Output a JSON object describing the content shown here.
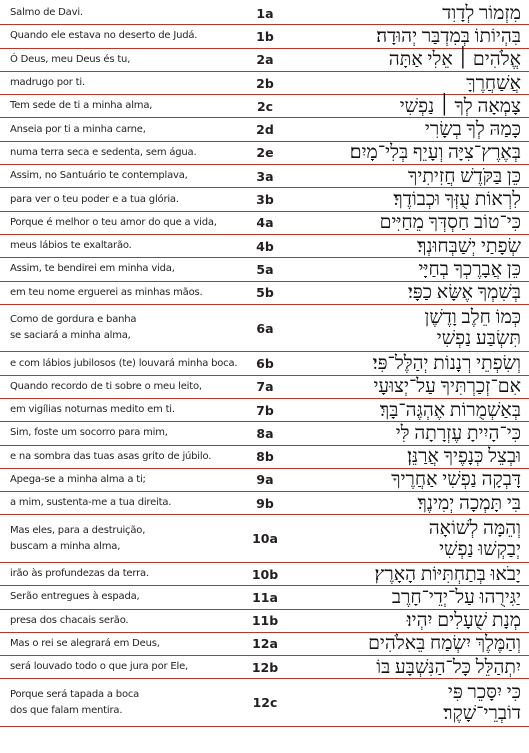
{
  "table": {
    "rows": [
      {
        "pt": [
          "Salmo de Davi."
        ],
        "ref": "1a",
        "he": [
          "מִזְמוֹר לְדָוִד"
        ]
      },
      {
        "pt": [
          "Quando ele estava no deserto de Judá."
        ],
        "ref": "1b",
        "he": [
          "בִּהְיוֹתוֹ בְּמִדְבַּר יְהוּדָה׃"
        ]
      },
      {
        "pt": [
          "Ó Deus, meu Deus és tu,"
        ],
        "ref": "2a",
        "he": [
          "אֱלֹהִים ׀ אֵלִי אַתָּה"
        ]
      },
      {
        "pt": [
          "madrugo por ti."
        ],
        "ref": "2b",
        "he": [
          "אֲשַׁחֲרֶךָּ"
        ]
      },
      {
        "pt": [
          "Tem sede de ti a minha alma,"
        ],
        "ref": "2c",
        "he": [
          "צָמְאָה לְךָ ׀ נַפְשִׁי"
        ]
      },
      {
        "pt": [
          "Anseia por ti a minha carne,"
        ],
        "ref": "2d",
        "he": [
          "כָּמַהּ לְךָ בְשָׂרִי"
        ]
      },
      {
        "pt": [
          "numa terra seca e sedenta, sem água."
        ],
        "ref": "2e",
        "he": [
          "בְּאֶרֶץ־צִיָּה וְעָיֵף בְּלִי־מָיִם׃"
        ]
      },
      {
        "pt": [
          "Assim, no Santuário te contemplava,"
        ],
        "ref": "3a",
        "he": [
          "כֵּן בַּקֹּדֶשׁ חֲזִיתִיךָ"
        ]
      },
      {
        "pt": [
          "para ver o teu poder e a tua glória."
        ],
        "ref": "3b",
        "he": [
          "לִרְאוֹת עֻזְּךָ וּכְבוֹדֶךָ׃"
        ]
      },
      {
        "pt": [
          "Porque é melhor o teu amor do que a vida,"
        ],
        "ref": "4a",
        "he": [
          "כִּי־טוֹב חַסְדְּךָ מֵחַיִּים"
        ]
      },
      {
        "pt": [
          "meus lábios te exaltarão."
        ],
        "ref": "4b",
        "he": [
          "שְׂפָתַי יְשַׁבְּחוּנְךָ׃"
        ]
      },
      {
        "pt": [
          "Assim, te bendirei em minha vida,"
        ],
        "ref": "5a",
        "he": [
          "כֵּן אֲבָרֶכְךָ בְחַיָּי"
        ]
      },
      {
        "pt": [
          "em teu nome erguerei as minhas mãos."
        ],
        "ref": "5b",
        "he": [
          "בְּשִׁמְךָ אֶשָּׂא כַפָּי׃"
        ]
      },
      {
        "pt": [
          "Como de gordura e banha",
          "se saciará a minha alma,"
        ],
        "ref": "6a",
        "he": [
          "כְּמוֹ חֵלֶב וָדֶשֶׁן",
          "תִּשְׂבַּע נַפְשִׁי"
        ]
      },
      {
        "pt": [
          "e com lábios jubilosos (te) louvará minha boca."
        ],
        "ref": "6b",
        "he": [
          "וְשִׂפְתֵי רְנָנוֹת יְהַלֶּל־פִּי׃"
        ]
      },
      {
        "pt": [
          "Quando recordo de ti sobre o meu leito,"
        ],
        "ref": "7a",
        "he": [
          "אִם־זְכַרְתִּיךָ עַל־יְצוּעָי"
        ]
      },
      {
        "pt": [
          "em vigílias noturnas medito em ti."
        ],
        "ref": "7b",
        "he": [
          "בְּאַשְׁמֻרוֹת אֶהְגֶּה־בָּךְ׃"
        ]
      },
      {
        "pt": [
          "Sim, foste um socorro para mim,"
        ],
        "ref": "8a",
        "he": [
          "כִּי־הָיִיתָ עֶזְרָתָה לִּי"
        ]
      },
      {
        "pt": [
          "e na sombra das tuas asas grito de júbilo."
        ],
        "ref": "8b",
        "he": [
          "וּבְצֵל כְּנָפֶיךָ אֲרַנֵּן׃"
        ]
      },
      {
        "pt": [
          "Apega-se a minha alma a ti;"
        ],
        "ref": "9a",
        "he": [
          "דָּבְקָה נַפְשִׁי אַחֲרֶיךָ"
        ]
      },
      {
        "pt": [
          "a mim, sustenta-me a tua direita."
        ],
        "ref": "9b",
        "he": [
          "בִּי תָּמְכָה יְמִינֶךָ׃"
        ]
      },
      {
        "pt": [
          "Mas eles, para a destruição,",
          "buscam a minha alma,"
        ],
        "ref": "10a",
        "he": [
          "וְהֵמָּה לְשׁוֹאָה",
          "יְבַקְשׁוּ נַפְשִׁי"
        ]
      },
      {
        "pt": [
          "irão às profundezas da terra."
        ],
        "ref": "10b",
        "he": [
          "יָבֹאוּ בְּתַחְתִּיּוֹת הָאָרֶץ׃"
        ]
      },
      {
        "pt": [
          "Serão entregues à espada,"
        ],
        "ref": "11a",
        "he": [
          "יַגִּירֻהוּ עַל־יְדֵי־חָרֶב"
        ]
      },
      {
        "pt": [
          "presa dos chacais serão."
        ],
        "ref": "11b",
        "he": [
          "מְנָת שֻׁעָלִים יִהְיוּ׃"
        ]
      },
      {
        "pt": [
          "Mas o rei se alegrará em Deus,"
        ],
        "ref": "12a",
        "he": [
          "וְהַמֶּלֶךְ יִשְׂמַח בֵּאלֹהִים"
        ]
      },
      {
        "pt": [
          "será louvado todo o que jura por Ele,"
        ],
        "ref": "12b",
        "he": [
          "יִתְהַלֵּל כָּל־הַנִּשְׁבָּע בּוֹ"
        ]
      },
      {
        "pt": [
          "Porque será tapada a boca",
          "dos que falam mentira."
        ],
        "ref": "12c",
        "he": [
          "כִּי יִסָּכֵר פִּי",
          "דוֹבְרֵי־שָׁקֶר׃"
        ]
      }
    ]
  }
}
